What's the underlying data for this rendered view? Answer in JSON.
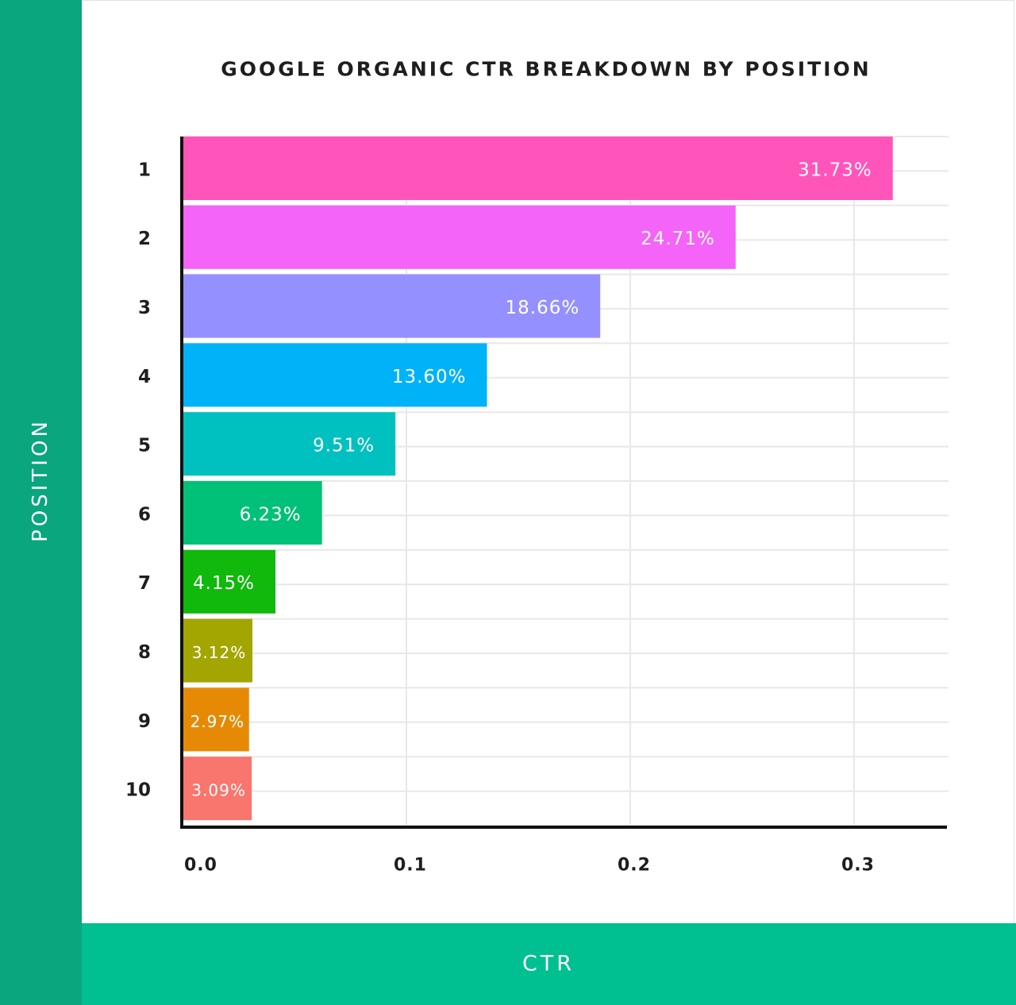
{
  "chart_data": {
    "type": "bar",
    "orientation": "horizontal",
    "title": "GOOGLE ORGANIC CTR BREAKDOWN BY POSITION",
    "xlabel": "CTR",
    "ylabel": "POSITION",
    "xlim": [
      0,
      0.342
    ],
    "x_ticks": [
      "0.0",
      "0.1",
      "0.2",
      "0.3"
    ],
    "x_tick_values": [
      0,
      0.1,
      0.2,
      0.3
    ],
    "grid": true,
    "categories": [
      "1",
      "2",
      "3",
      "4",
      "5",
      "6",
      "7",
      "8",
      "9",
      "10"
    ],
    "values": [
      0.3173,
      0.2471,
      0.1866,
      0.136,
      0.0951,
      0.0623,
      0.0415,
      0.0312,
      0.0297,
      0.0309
    ],
    "data_labels": [
      "31.73%",
      "24.71%",
      "18.66%",
      "13.60%",
      "9.51%",
      "6.23%",
      "4.15%",
      "3.12%",
      "2.97%",
      "3.09%"
    ],
    "colors": [
      "#ff55bb",
      "#f564f8",
      "#9590ff",
      "#00b2f8",
      "#00c1bf",
      "#00c177",
      "#10b90b",
      "#a3a500",
      "#e68a06",
      "#f8766d"
    ]
  },
  "theme": {
    "side_band_color": "#0aa67e",
    "bottom_band_color": "#00bf91",
    "grid_color": "#e8e8e8",
    "axis_color": "#111111",
    "label_color": "#ffffff",
    "tick_color": "#1e1e1e"
  }
}
